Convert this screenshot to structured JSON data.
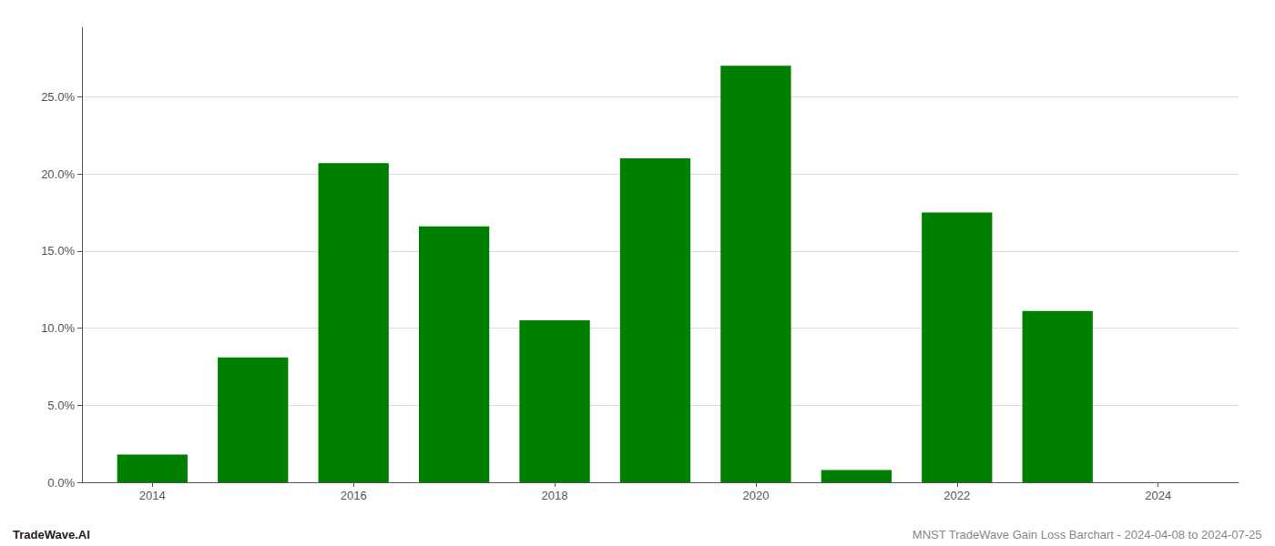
{
  "chart_data": {
    "type": "bar",
    "annotations": [
      "TradeWave.AI",
      "MNST TradeWave Gain Loss Barchart - 2024-04-08 to 2024-07-25"
    ],
    "x": [
      2014,
      2015,
      2016,
      2017,
      2018,
      2019,
      2020,
      2021,
      2022,
      2023,
      2024
    ],
    "values": [
      0.018,
      0.081,
      0.207,
      0.166,
      0.105,
      0.21,
      0.27,
      0.008,
      0.175,
      0.111,
      0.0
    ],
    "color": "#008000",
    "xlim": [
      2013.3,
      2024.8
    ],
    "xticks": [
      2014,
      2016,
      2018,
      2020,
      2022,
      2024
    ],
    "ylim": [
      0.0,
      0.295
    ],
    "yticks": [
      {
        "value": 0.0,
        "label": "0.0%"
      },
      {
        "value": 0.05,
        "label": "5.0%"
      },
      {
        "value": 0.1,
        "label": "10.0%"
      },
      {
        "value": 0.15,
        "label": "15.0%"
      },
      {
        "value": 0.2,
        "label": "20.0%"
      },
      {
        "value": 0.25,
        "label": "25.0%"
      }
    ],
    "grid": true
  }
}
